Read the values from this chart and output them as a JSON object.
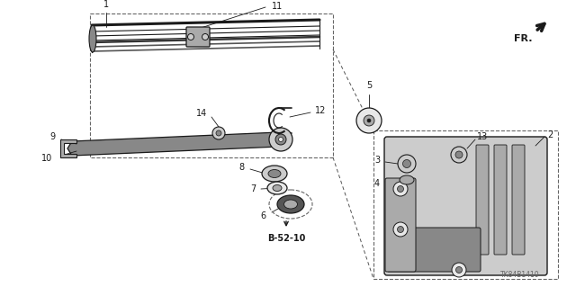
{
  "bg_color": "#ffffff",
  "fig_width": 6.4,
  "fig_height": 3.19,
  "dpi": 100,
  "watermark": "TK84B1410",
  "line_color": "#1a1a1a",
  "gray1": "#222222",
  "gray2": "#555555",
  "gray3": "#888888",
  "gray4": "#aaaaaa",
  "gray5": "#cccccc",
  "gray6": "#e8e8e8"
}
